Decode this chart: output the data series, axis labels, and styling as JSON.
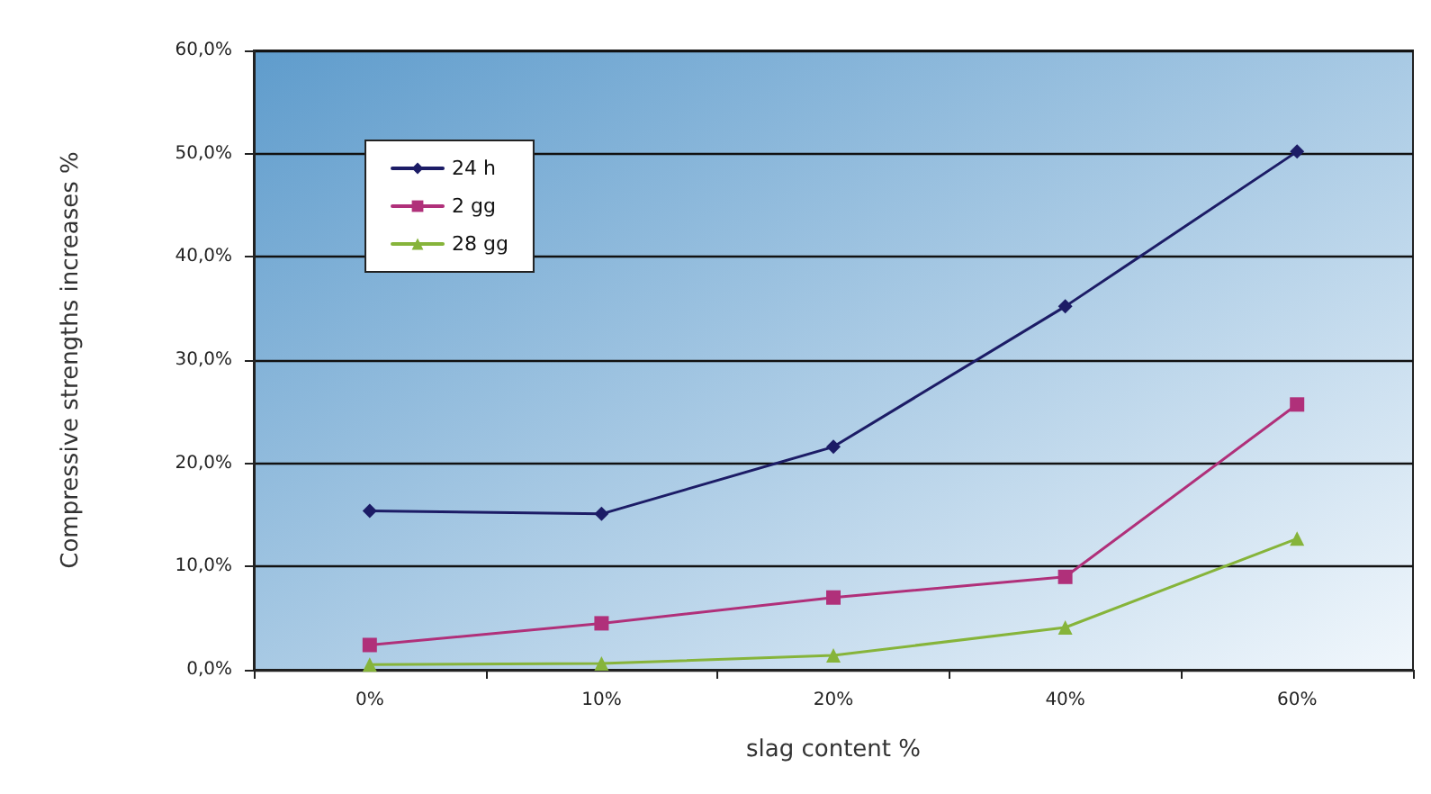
{
  "chart_data": {
    "type": "line",
    "xlabel": "slag content %",
    "ylabel": "Compressive strengths increases %",
    "categories": [
      "0%",
      "10%",
      "20%",
      "40%",
      "60%"
    ],
    "series": [
      {
        "name": "24 h",
        "color": "#1c1c66",
        "marker": "diamond",
        "values": [
          15.4,
          15.1,
          21.6,
          35.2,
          50.2
        ]
      },
      {
        "name": "2 gg",
        "color": "#b0307a",
        "marker": "square",
        "values": [
          2.4,
          4.5,
          7.0,
          9.0,
          25.7
        ]
      },
      {
        "name": "28 gg",
        "color": "#86b43a",
        "marker": "triangle",
        "values": [
          0.5,
          0.6,
          1.4,
          4.1,
          12.7
        ]
      }
    ],
    "ylim": [
      0,
      60
    ],
    "yticks": [
      {
        "value": 0,
        "label": "0,0%"
      },
      {
        "value": 10,
        "label": "10,0%"
      },
      {
        "value": 20,
        "label": "20,0%"
      },
      {
        "value": 30,
        "label": "30,0%"
      },
      {
        "value": 40,
        "label": "40,0%"
      },
      {
        "value": 50,
        "label": "50,0%"
      },
      {
        "value": 60,
        "label": "60,0%"
      }
    ],
    "grid": "y",
    "legend": "top left",
    "line_style": "solid"
  }
}
